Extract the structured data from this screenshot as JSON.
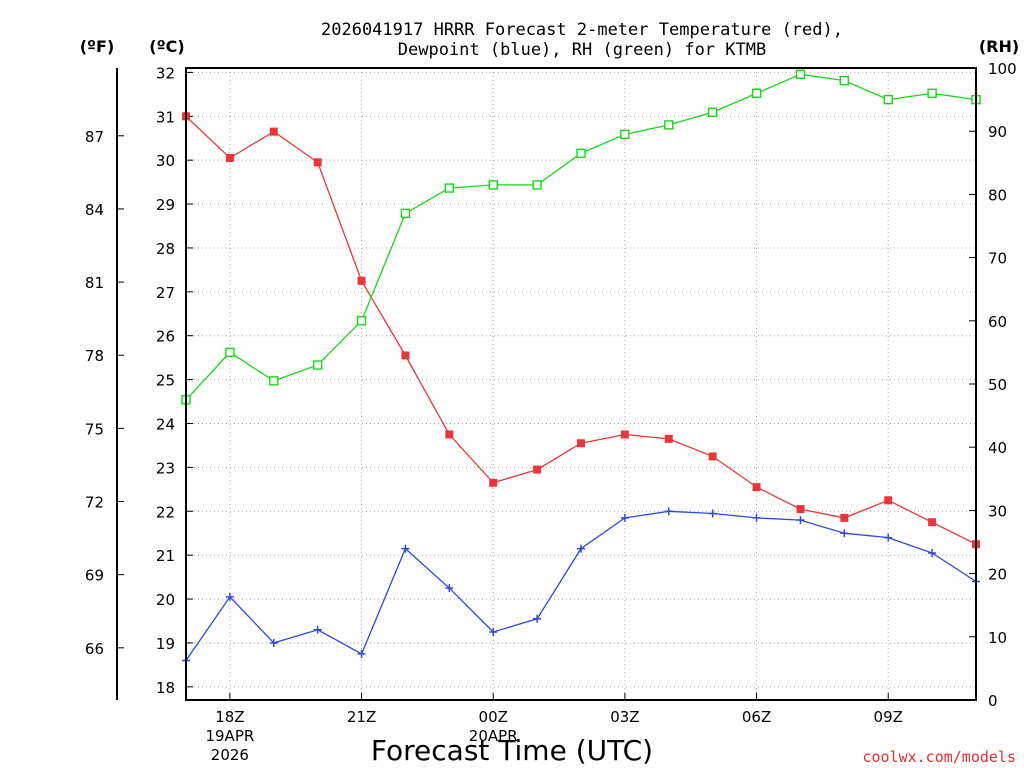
{
  "header": {
    "title_line1": "2026041917 HRRR Forecast 2-meter Temperature (red),",
    "title_line2": "Dewpoint (blue), RH (green) for KTMB"
  },
  "footer": {
    "credit": "coolwx.com/models"
  },
  "colors": {
    "temperature": "#e8363a",
    "dewpoint": "#2f49e0",
    "rh": "#19d619",
    "grid": "#a8a8a8",
    "credit": "#e0302f"
  },
  "chart_data": {
    "type": "line",
    "xlabel": "Forecast Time (UTC)",
    "ylabel": "(ºC)",
    "ylabel_left_f": "(ºF)",
    "ylabel_right": "(RH)",
    "x": [
      "17Z",
      "18Z",
      "19Z",
      "20Z",
      "21Z",
      "22Z",
      "23Z",
      "00Z",
      "01Z",
      "02Z",
      "03Z",
      "04Z",
      "05Z",
      "06Z",
      "07Z",
      "08Z",
      "09Z",
      "10Z",
      "11Z"
    ],
    "x_ticks": [
      {
        "index": 1,
        "label": "18Z",
        "date": "19APR",
        "year": "2026"
      },
      {
        "index": 4,
        "label": "21Z"
      },
      {
        "index": 7,
        "label": "00Z",
        "date": "20APR"
      },
      {
        "index": 10,
        "label": "03Z"
      },
      {
        "index": 13,
        "label": "06Z"
      },
      {
        "index": 16,
        "label": "09Z"
      }
    ],
    "ylim": [
      17.7,
      32.1
    ],
    "yticks": [
      18,
      19,
      20,
      21,
      22,
      23,
      24,
      25,
      26,
      27,
      28,
      29,
      30,
      31,
      32
    ],
    "ylim_f": [
      63.86,
      89.78
    ],
    "yticks_f": [
      66,
      69,
      72,
      75,
      78,
      81,
      84,
      87
    ],
    "ylim_right": [
      0,
      100
    ],
    "yticks_right": [
      0,
      10,
      20,
      30,
      40,
      50,
      60,
      70,
      80,
      90,
      100
    ],
    "grid": true,
    "series": [
      {
        "name": "Temperature",
        "axis": "left",
        "marker": "filled-square",
        "values": [
          31.0,
          30.05,
          30.65,
          29.95,
          27.25,
          25.55,
          23.75,
          22.65,
          22.95,
          23.55,
          23.75,
          23.65,
          23.25,
          22.55,
          22.05,
          21.85,
          22.25,
          21.75,
          21.25
        ]
      },
      {
        "name": "Dewpoint",
        "axis": "left",
        "marker": "plus",
        "values": [
          18.6,
          20.05,
          19.0,
          19.3,
          18.75,
          21.15,
          20.25,
          19.25,
          19.55,
          21.15,
          21.85,
          22.0,
          21.95,
          21.85,
          21.8,
          21.5,
          21.4,
          21.05,
          20.4
        ]
      },
      {
        "name": "RH",
        "axis": "right",
        "marker": "open-square",
        "values": [
          47.5,
          55.0,
          50.5,
          53.0,
          60.0,
          77.0,
          81.0,
          81.5,
          81.5,
          86.5,
          89.5,
          91.0,
          93.0,
          96.0,
          99.0,
          98.0,
          95.0,
          96.0,
          95.0
        ]
      }
    ]
  }
}
